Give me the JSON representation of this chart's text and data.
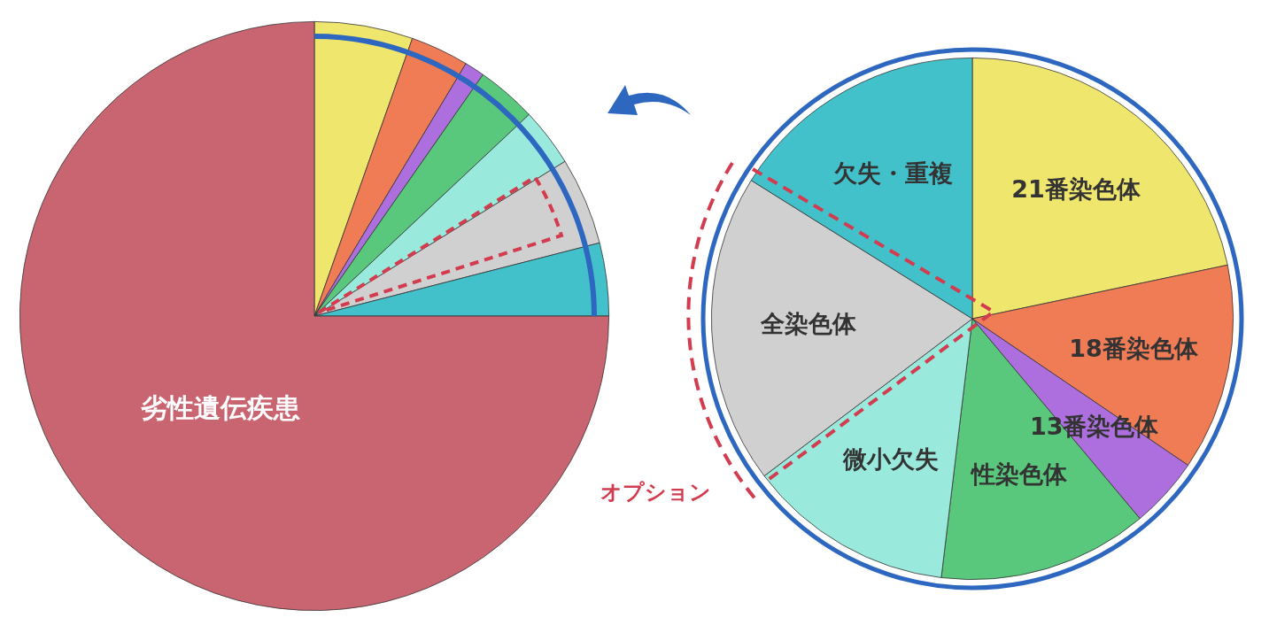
{
  "chart_data": [
    {
      "type": "pie",
      "categories": [
        null,
        null,
        null,
        null,
        null,
        null,
        null,
        "劣性遺伝疾患"
      ],
      "values": [
        5.4,
        3.2,
        1.1,
        3.3,
        3.2,
        4.8,
        4.0,
        75
      ],
      "colors": [
        "#efe66e",
        "#f07c56",
        "#ac6fdd",
        "#5ac87c",
        "#99e9dc",
        "#d0d0d0",
        "#43c1cb",
        "#c96571"
      ]
    },
    {
      "type": "pie",
      "categories": [
        "21番染色体",
        "18番染色体",
        "13番染色体",
        "性染色体",
        "微小欠失",
        "全染色体",
        "欠失・重複"
      ],
      "values": [
        21.7,
        12.8,
        4.4,
        13,
        12.8,
        19.2,
        16.1
      ],
      "colors": [
        "#efe66e",
        "#f07c56",
        "#ac6fdd",
        "#5ac87c",
        "#99e9dc",
        "#d0d0d0",
        "#43c1cb"
      ],
      "annotations": [
        "オプション"
      ]
    }
  ]
}
